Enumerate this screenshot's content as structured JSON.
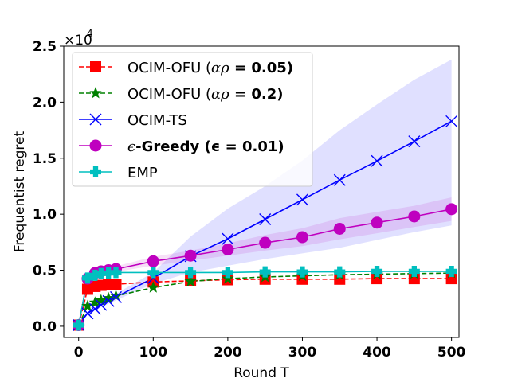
{
  "chart_data": {
    "type": "line",
    "title": "",
    "xlabel": "Round T",
    "ylabel": "Frequentist regret",
    "xlim": [
      -20,
      510
    ],
    "ylim": [
      -1000,
      25000
    ],
    "x_ticks": [
      0,
      100,
      200,
      300,
      400,
      500
    ],
    "y_ticks": [
      0,
      5000,
      10000,
      15000,
      20000,
      25000
    ],
    "y_tick_labels": [
      "0.0",
      "0.5",
      "1.0",
      "1.5",
      "2.0",
      "2.5"
    ],
    "y_multiplier": {
      "base": "×10",
      "exponent": "4"
    },
    "grid": false,
    "legend_position": "upper-left",
    "series": [
      {
        "name": "OCIM-OFU (αρ = 0.05)",
        "legend_prefix": "OCIM-OFU (",
        "legend_math": "αρ",
        "legend_suffix": " = 0.05)",
        "color": "#ff0000",
        "dash": "dashed",
        "marker": "square",
        "x": [
          0,
          12,
          22,
          30,
          40,
          50,
          100,
          150,
          200,
          250,
          300,
          350,
          400,
          450,
          500
        ],
        "y": [
          100,
          3300,
          3550,
          3650,
          3700,
          3750,
          3950,
          4050,
          4150,
          4200,
          4200,
          4200,
          4250,
          4250,
          4250
        ]
      },
      {
        "name": "OCIM-OFU (αρ = 0.2)",
        "legend_prefix": "OCIM-OFU (",
        "legend_math": "αρ",
        "legend_suffix": " = 0.2)",
        "color": "#008000",
        "dash": "dashed",
        "marker": "star",
        "x": [
          0,
          12,
          22,
          30,
          40,
          50,
          100,
          150,
          200,
          250,
          300,
          350,
          400,
          450,
          500
        ],
        "y": [
          100,
          1800,
          2100,
          2300,
          2500,
          2700,
          3450,
          4000,
          4250,
          4400,
          4500,
          4600,
          4650,
          4700,
          4750
        ]
      },
      {
        "name": "OCIM-TS",
        "color": "#0000ff",
        "dash": "solid",
        "marker": "x",
        "x": [
          0,
          12,
          22,
          30,
          40,
          50,
          100,
          150,
          200,
          250,
          300,
          350,
          400,
          450,
          500
        ],
        "y": [
          100,
          1150,
          1550,
          1900,
          2250,
          2600,
          4300,
          6250,
          7800,
          9550,
          11300,
          13050,
          14750,
          16500,
          18300
        ],
        "band_lower": [
          100,
          1050,
          1400,
          1700,
          2000,
          2300,
          3800,
          4800,
          5400,
          6000,
          6500,
          7000,
          7700,
          8400,
          9000
        ],
        "band_upper": [
          100,
          1250,
          1700,
          2100,
          2500,
          2900,
          4800,
          8000,
          10500,
          12500,
          14800,
          17500,
          19800,
          22000,
          23800
        ]
      },
      {
        "name": "ϵ-Greedy (ϵ = 0.01)",
        "legend_prefix": "",
        "legend_math": "ϵ",
        "legend_suffix": "-Greedy (ϵ = 0.01)",
        "color": "#bf00bf",
        "dash": "solid",
        "marker": "circle",
        "x": [
          0,
          12,
          22,
          30,
          40,
          50,
          100,
          150,
          200,
          250,
          300,
          350,
          400,
          450,
          500
        ],
        "y": [
          100,
          4250,
          4750,
          4900,
          5000,
          5100,
          5800,
          6300,
          6850,
          7450,
          7950,
          8700,
          9250,
          9800,
          10450
        ],
        "band_lower": [
          100,
          4150,
          4600,
          4700,
          4800,
          4850,
          5400,
          5850,
          6300,
          6750,
          7150,
          7750,
          8300,
          8850,
          9400
        ],
        "band_upper": [
          100,
          4350,
          4900,
          5100,
          5200,
          5350,
          6200,
          6750,
          7400,
          8150,
          8750,
          9650,
          10200,
          10750,
          11500
        ]
      },
      {
        "name": "EMP",
        "color": "#00bfbf",
        "dash": "solid",
        "marker": "plus",
        "x": [
          0,
          12,
          22,
          30,
          40,
          50,
          100,
          150,
          200,
          250,
          300,
          350,
          400,
          450,
          500
        ],
        "y": [
          100,
          4300,
          4550,
          4700,
          4750,
          4800,
          4800,
          4800,
          4800,
          4850,
          4850,
          4850,
          4900,
          4900,
          4900
        ]
      }
    ]
  }
}
